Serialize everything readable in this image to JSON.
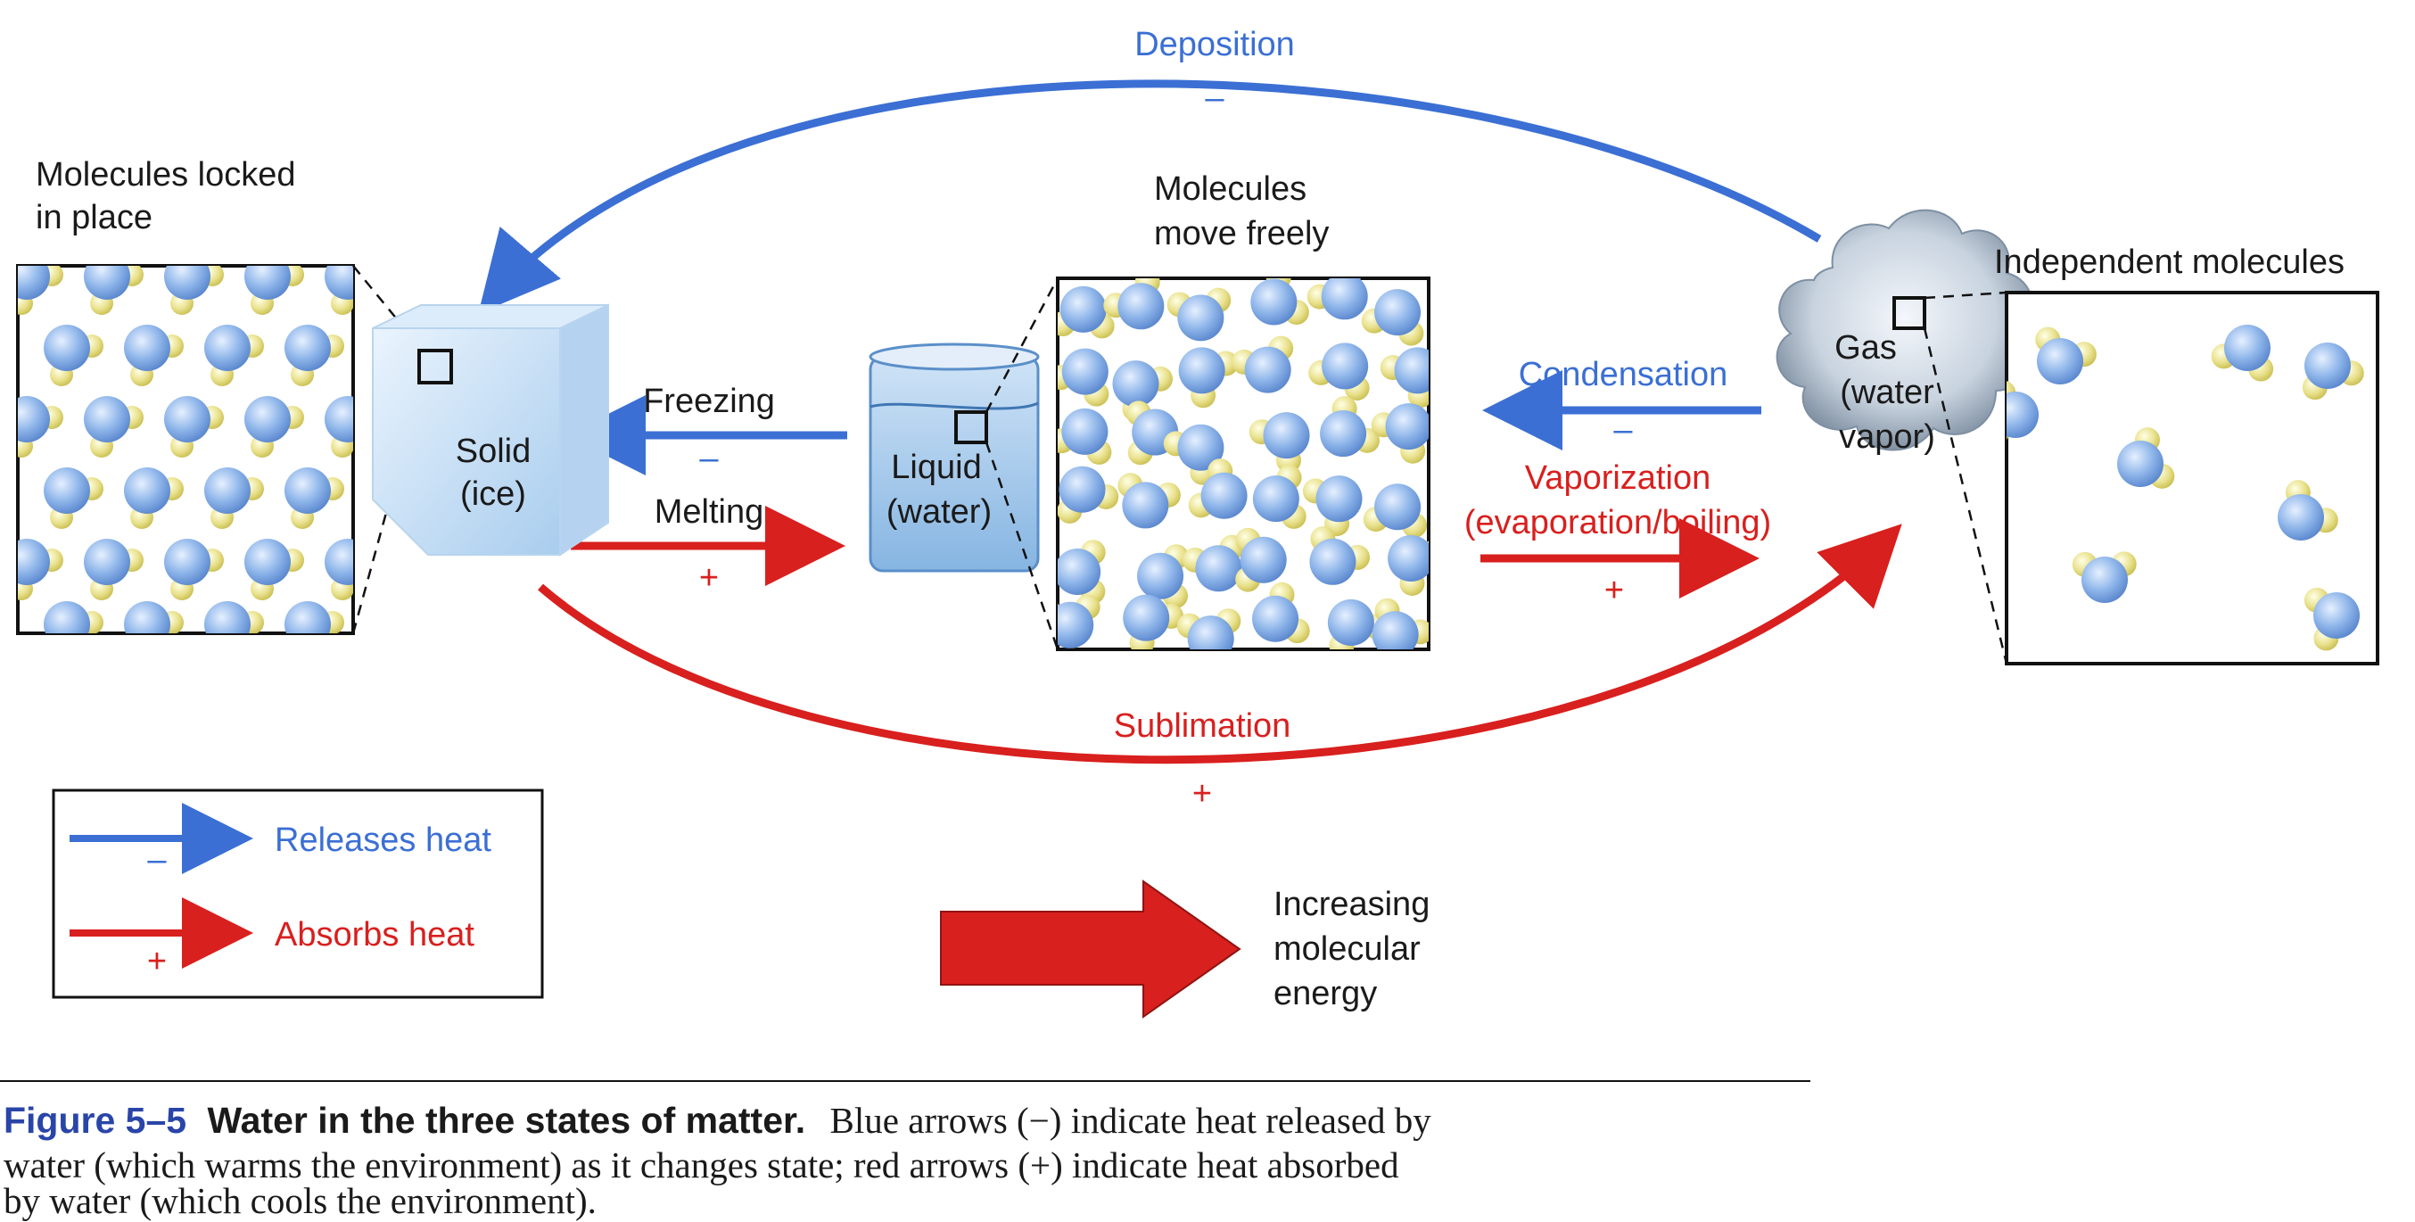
{
  "colors": {
    "release": "#3b6fd4",
    "absorb": "#d8201e",
    "text": "#1a1a1a",
    "caption_accent": "#2a45a8",
    "water_blue": "#8fb6ea",
    "hydrogen_yellow": "#e8e08a"
  },
  "icons": {
    "ice_cube": "ice-cube-icon",
    "beaker": "beaker-icon",
    "vapor_cloud": "vapor-cloud-icon",
    "water_molecule": "water-molecule-icon"
  },
  "states": {
    "solid": {
      "line1": "Solid",
      "line2": "(ice)",
      "molecules_line1": "Molecules locked",
      "molecules_line2": "in place"
    },
    "liquid": {
      "line1": "Liquid",
      "line2": "(water)",
      "molecules_line1": "Molecules",
      "molecules_line2": "move freely"
    },
    "gas": {
      "line1": "Gas",
      "line2": "(water",
      "line3": "vapor)",
      "molecules_line1": "Independent molecules"
    }
  },
  "transitions": {
    "deposition": {
      "label": "Deposition",
      "sign": "–"
    },
    "freezing": {
      "label": "Freezing",
      "sign": "–"
    },
    "melting": {
      "label": "Melting",
      "sign": "+"
    },
    "condensation": {
      "label": "Condensation",
      "sign": "–"
    },
    "vaporization": {
      "label_line1": "Vaporization",
      "label_line2": "(evaporation/boiling)",
      "sign": "+"
    },
    "sublimation": {
      "label": "Sublimation",
      "sign": "+"
    }
  },
  "legend": {
    "releases": {
      "label": "Releases heat",
      "sign": "–"
    },
    "absorbs": {
      "label": "Absorbs heat",
      "sign": "+"
    }
  },
  "energy": {
    "line1": "Increasing",
    "line2": "molecular",
    "line3": "energy"
  },
  "caption": {
    "figure": "Figure 5–5",
    "title": "Water in the three states of matter.",
    "line1_rest": "Blue arrows (−) indicate heat released by",
    "line2": "water (which warms the environment) as it changes state; red arrows (+) indicate heat absorbed",
    "line3": "by water (which cools the environment)."
  }
}
